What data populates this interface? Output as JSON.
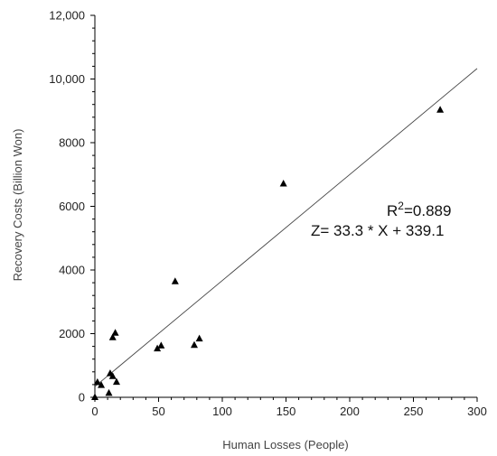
{
  "chart_data": {
    "type": "scatter",
    "title": "",
    "xlabel": "Human Losses (People)",
    "ylabel": "Recovery Costs (Billion Won)",
    "xlim": [
      0,
      300
    ],
    "ylim": [
      0,
      12000
    ],
    "x_ticks": [
      0,
      50,
      100,
      150,
      200,
      250,
      300
    ],
    "x_tick_labels": [
      "0",
      "50",
      "100",
      "150",
      "200",
      "250",
      "300"
    ],
    "y_ticks": [
      0,
      2000,
      4000,
      6000,
      8000,
      10000,
      12000
    ],
    "y_tick_labels": [
      "0",
      "2000",
      "4000",
      "6000",
      "8000",
      "10,000",
      "12,000"
    ],
    "grid": false,
    "marker": "triangle",
    "points": [
      {
        "x": 0,
        "y": 0
      },
      {
        "x": 2,
        "y": 470
      },
      {
        "x": 5,
        "y": 380
      },
      {
        "x": 11,
        "y": 130
      },
      {
        "x": 12,
        "y": 750
      },
      {
        "x": 14,
        "y": 660
      },
      {
        "x": 14,
        "y": 1880
      },
      {
        "x": 16,
        "y": 2020
      },
      {
        "x": 17,
        "y": 480
      },
      {
        "x": 49,
        "y": 1530
      },
      {
        "x": 52,
        "y": 1620
      },
      {
        "x": 63,
        "y": 3640
      },
      {
        "x": 78,
        "y": 1640
      },
      {
        "x": 82,
        "y": 1840
      },
      {
        "x": 148,
        "y": 6710
      },
      {
        "x": 271,
        "y": 9030
      }
    ],
    "trendline": {
      "slope": 33.3,
      "intercept": 339.1
    },
    "annotations": {
      "r2_prefix": "R",
      "r2_exp": "2",
      "r2_value": "=0.889",
      "equation": "Z= 33.3 * X + 339.1"
    }
  }
}
